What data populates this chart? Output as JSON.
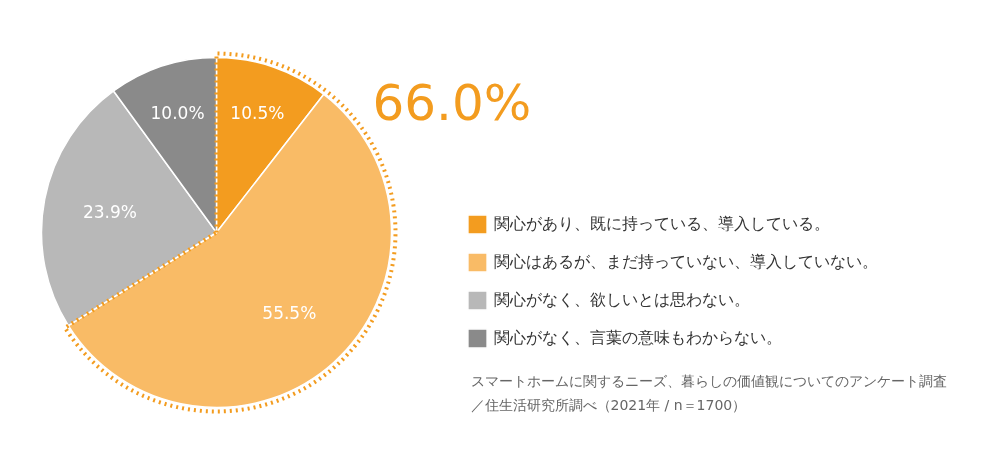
{
  "chart_data": {
    "type": "pie",
    "categories": [
      "関心があり、既に持っている、導入している。",
      "関心はあるが、まだ持っていない、導入していない。",
      "関心がなく、欲しいとは思わない。",
      "関心がなく、言葉の意味もわからない。"
    ],
    "values": [
      10.5,
      55.5,
      23.9,
      10.0
    ],
    "colors": [
      "#f39c1f",
      "#f9bb66",
      "#b8b8b8",
      "#8a8a8a"
    ],
    "value_labels": [
      "10.5%",
      "55.5%",
      "23.9%",
      "10.0%"
    ],
    "legend": "right",
    "annotations": [
      "66.0%",
      "スマートホームに関するニーズ、暮らしの価値観についてのアンケート調査",
      "／住生活研究所調べ（2021年 / n＝1700）"
    ]
  }
}
